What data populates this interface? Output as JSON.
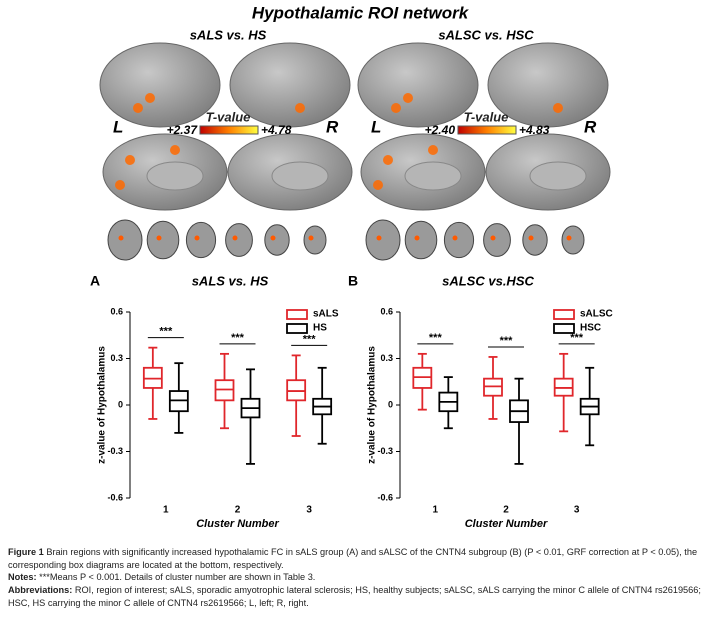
{
  "figure": {
    "title": "Hypothalamic ROI network",
    "panels": [
      {
        "heading": "sALS vs. HS",
        "left": "L",
        "right": "R",
        "colorbar_title": "T-value",
        "cmin": "+2.37",
        "cmax": "+4.78",
        "letter": "A",
        "chart_heading": "sALS vs. HS"
      },
      {
        "heading": "sALSC vs. HSC",
        "left": "L",
        "right": "R",
        "colorbar_title": "T-value",
        "cmin": "+2.40",
        "cmax": "+4.83",
        "letter": "B",
        "chart_heading": "sALSC vs.HSC"
      }
    ]
  },
  "chart_data": [
    {
      "type": "box",
      "x_label": "Cluster Number",
      "y_label": "z-value of Hypothalamus",
      "categories": [
        "1",
        "2",
        "3"
      ],
      "ylim": [
        -0.6,
        0.6
      ],
      "yticks": [
        0.6,
        0.3,
        0,
        -0.3,
        -0.6
      ],
      "sig_labels": [
        "***",
        "***",
        "***"
      ],
      "series": [
        {
          "name": "sALS",
          "color": "#e0262b",
          "values": [
            {
              "whisker_low": -0.09,
              "q1": 0.11,
              "median": 0.17,
              "q3": 0.24,
              "whisker_high": 0.37
            },
            {
              "whisker_low": -0.15,
              "q1": 0.03,
              "median": 0.1,
              "q3": 0.16,
              "whisker_high": 0.33
            },
            {
              "whisker_low": -0.2,
              "q1": 0.03,
              "median": 0.09,
              "q3": 0.16,
              "whisker_high": 0.32
            }
          ]
        },
        {
          "name": "HS",
          "color": "#000000",
          "values": [
            {
              "whisker_low": -0.18,
              "q1": -0.04,
              "median": 0.03,
              "q3": 0.09,
              "whisker_high": 0.27
            },
            {
              "whisker_low": -0.38,
              "q1": -0.08,
              "median": -0.02,
              "q3": 0.04,
              "whisker_high": 0.23
            },
            {
              "whisker_low": -0.25,
              "q1": -0.06,
              "median": -0.01,
              "q3": 0.04,
              "whisker_high": 0.24
            }
          ]
        }
      ]
    },
    {
      "type": "box",
      "x_label": "Cluster Number",
      "y_label": "z-value of Hypothalamus",
      "categories": [
        "1",
        "2",
        "3"
      ],
      "ylim": [
        -0.6,
        0.6
      ],
      "yticks": [
        0.6,
        0.3,
        0,
        -0.3,
        -0.6
      ],
      "sig_labels": [
        "***",
        "***",
        "***"
      ],
      "series": [
        {
          "name": "sALSC",
          "color": "#e0262b",
          "values": [
            {
              "whisker_low": -0.03,
              "q1": 0.11,
              "median": 0.18,
              "q3": 0.24,
              "whisker_high": 0.33
            },
            {
              "whisker_low": -0.09,
              "q1": 0.06,
              "median": 0.12,
              "q3": 0.17,
              "whisker_high": 0.31
            },
            {
              "whisker_low": -0.17,
              "q1": 0.06,
              "median": 0.11,
              "q3": 0.17,
              "whisker_high": 0.33
            }
          ]
        },
        {
          "name": "HSC",
          "color": "#000000",
          "values": [
            {
              "whisker_low": -0.15,
              "q1": -0.04,
              "median": 0.02,
              "q3": 0.08,
              "whisker_high": 0.18
            },
            {
              "whisker_low": -0.38,
              "q1": -0.11,
              "median": -0.04,
              "q3": 0.03,
              "whisker_high": 0.17
            },
            {
              "whisker_low": -0.26,
              "q1": -0.06,
              "median": -0.01,
              "q3": 0.04,
              "whisker_high": 0.24
            }
          ]
        }
      ]
    }
  ],
  "caption": {
    "label": "Figure 1",
    "text": "Brain regions with significantly increased hypothalamic FC in sALS group (A) and sALSC of the CNTN4 subgroup (B) (P < 0.01, GRF correction at P < 0.05), the corresponding box diagrams are located at the bottom, respectively.",
    "notes_label": "Notes:",
    "notes_text": "***Means P < 0.001. Details of cluster number are shown in Table 3.",
    "abbr_label": "Abbreviations:",
    "abbr_text": "ROI, region of interest; sALS, sporadic amyotrophic lateral sclerosis; HS, healthy subjects; sALSC, sALS carrying the minor C allele of CNTN4 rs2619566; HSC, HS carrying the minor C allele of CNTN4 rs2619566; L, left; R, right."
  }
}
